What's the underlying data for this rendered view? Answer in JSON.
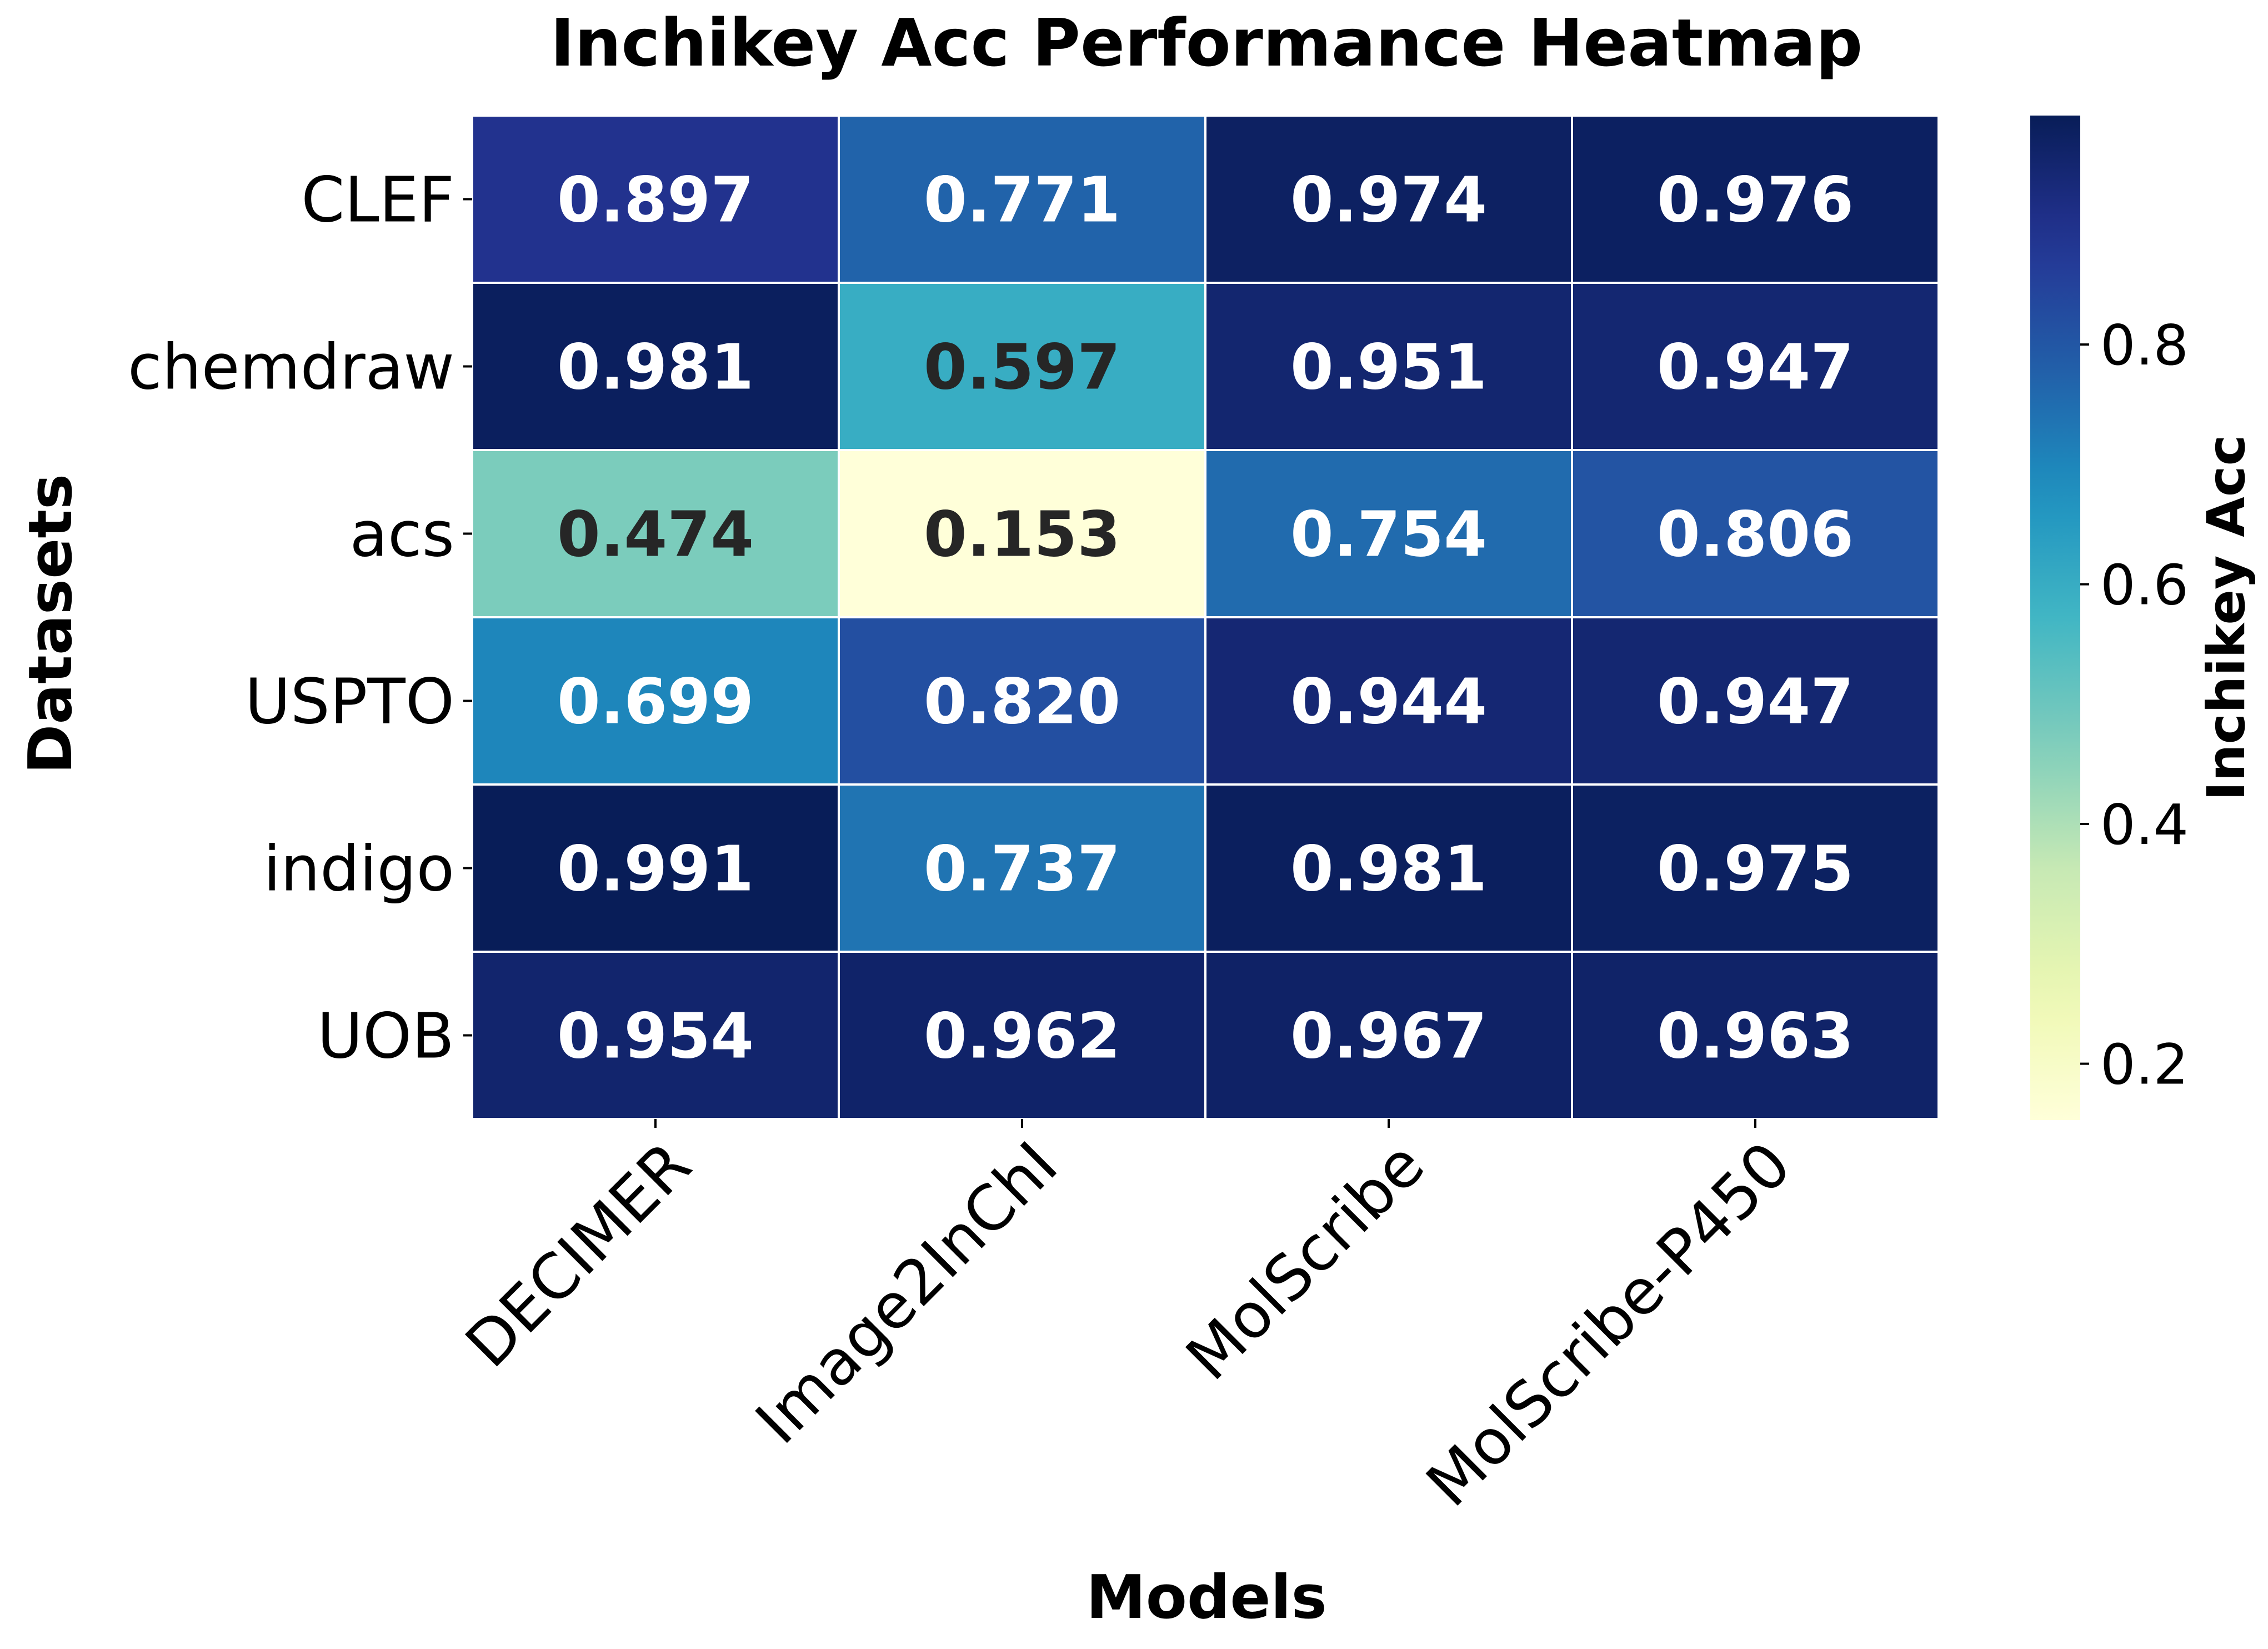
{
  "chart_data": {
    "type": "heatmap",
    "title": "Inchikey Acc Performance Heatmap",
    "xlabel": "Models",
    "ylabel": "Datasets",
    "x_categories": [
      "DECIMER",
      "Image2InChI",
      "MolScribe",
      "MolScribe-P450"
    ],
    "y_categories": [
      "CLEF",
      "chemdraw",
      "acs",
      "USPTO",
      "indigo",
      "UOB"
    ],
    "values": [
      [
        0.897,
        0.771,
        0.974,
        0.976
      ],
      [
        0.981,
        0.597,
        0.951,
        0.947
      ],
      [
        0.474,
        0.153,
        0.754,
        0.806
      ],
      [
        0.699,
        0.82,
        0.944,
        0.947
      ],
      [
        0.991,
        0.737,
        0.981,
        0.975
      ],
      [
        0.954,
        0.962,
        0.967,
        0.963
      ]
    ],
    "value_labels": [
      [
        "0.897",
        "0.771",
        "0.974",
        "0.976"
      ],
      [
        "0.981",
        "0.597",
        "0.951",
        "0.947"
      ],
      [
        "0.474",
        "0.153",
        "0.754",
        "0.806"
      ],
      [
        "0.699",
        "0.820",
        "0.944",
        "0.947"
      ],
      [
        "0.991",
        "0.737",
        "0.981",
        "0.975"
      ],
      [
        "0.954",
        "0.962",
        "0.967",
        "0.963"
      ]
    ],
    "colormap": "YlGnBu",
    "vmin": 0.153,
    "vmax": 0.991,
    "colorbar": {
      "label": "Inchikey Acc",
      "ticks": [
        0.2,
        0.4,
        0.6,
        0.8
      ],
      "tick_labels": [
        "0.2",
        "0.4",
        "0.6",
        "0.8"
      ]
    },
    "grid": false,
    "cell_border_color": "#ffffff",
    "annotation_dark_text_color": "#262626",
    "annotation_light_text_color": "#ffffff"
  }
}
